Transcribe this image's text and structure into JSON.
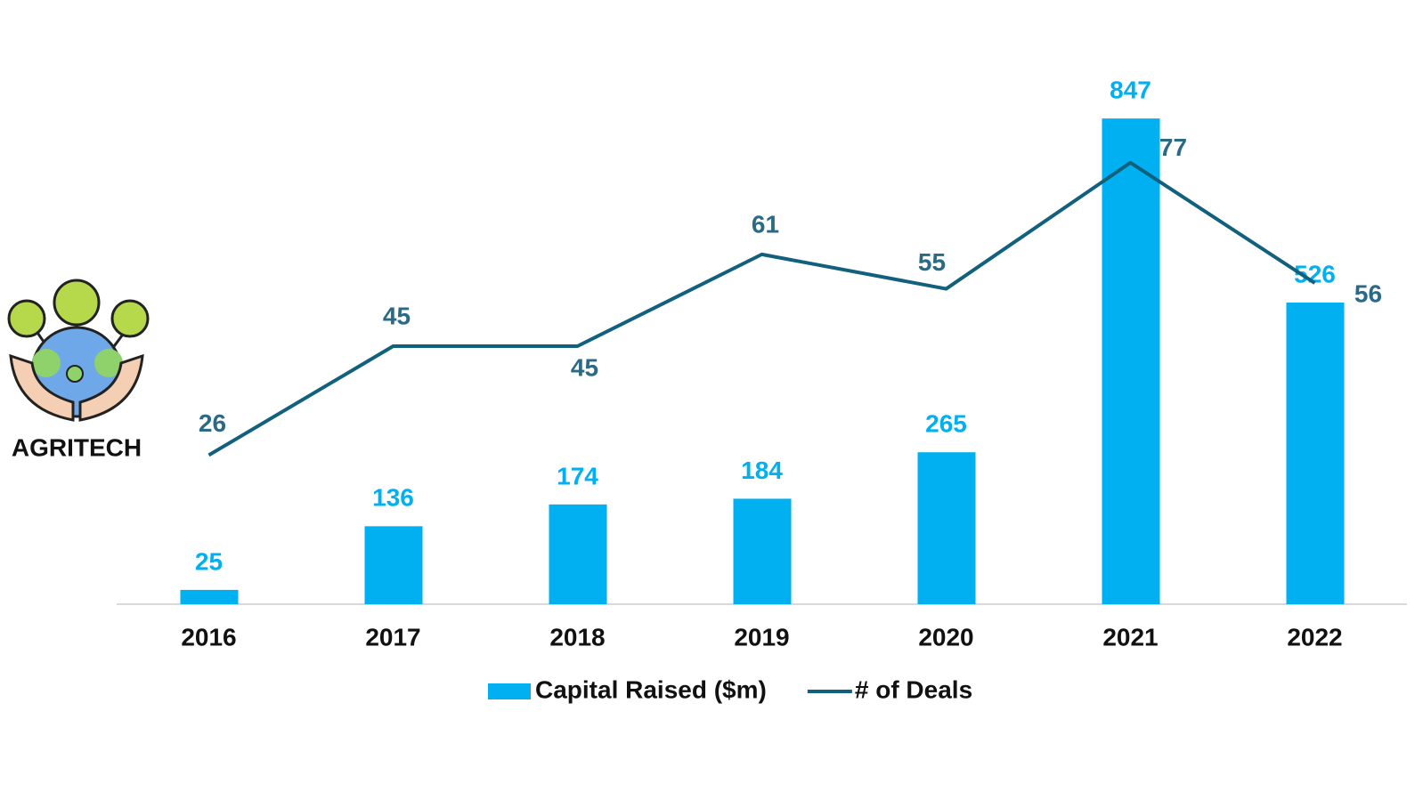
{
  "chart_data": {
    "type": "bar-line",
    "annotations": [
      "AGRITECH"
    ],
    "categories": [
      "2016",
      "2017",
      "2018",
      "2019",
      "2020",
      "2021",
      "2022"
    ],
    "series": [
      {
        "name": "Capital Raised ($m)",
        "type": "bar",
        "color": "#00b0f0",
        "values": [
          25,
          136,
          174,
          184,
          265,
          847,
          526
        ]
      },
      {
        "name": "# of Deals",
        "type": "line",
        "axis": "y2",
        "color": "#11607d",
        "values": [
          26,
          45,
          45,
          61,
          55,
          77,
          56
        ]
      }
    ],
    "ylim": [
      0,
      900
    ],
    "y2lim": [
      0,
      90
    ],
    "grid": false,
    "legend": "bottom"
  }
}
